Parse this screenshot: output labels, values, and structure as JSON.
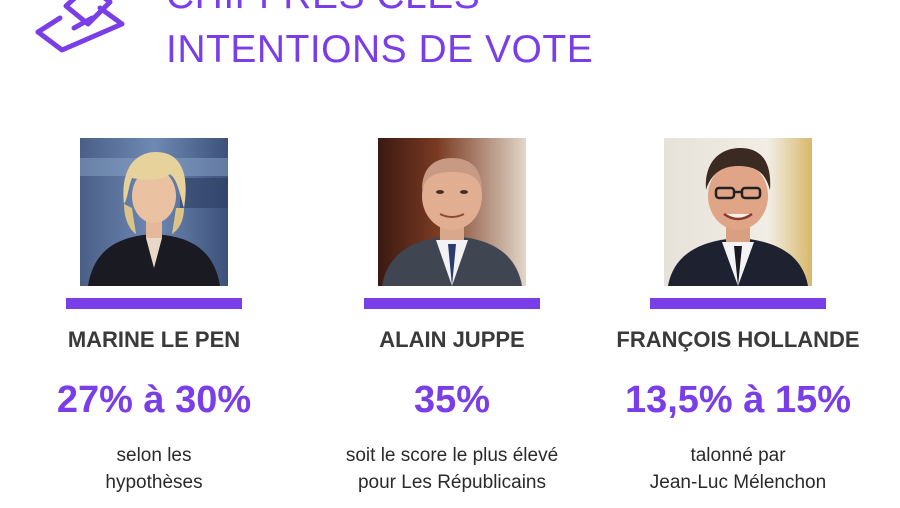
{
  "header": {
    "title_line1": "CHIFFRES CLÉS",
    "title_line2": "INTENTIONS DE VOTE",
    "icon": "ballot-box-icon"
  },
  "colors": {
    "accent": "#7a3ee8",
    "name_text": "#3a3a3a",
    "body_text": "#2a2a2a"
  },
  "candidates": [
    {
      "name": "MARINE LE PEN",
      "score": "27% à 30%",
      "desc_line1": "selon les",
      "desc_line2": "hypothèses"
    },
    {
      "name": "ALAIN JUPPE",
      "score": "35%",
      "desc_line1": "soit le score le plus élevé",
      "desc_line2": "pour Les Républicains"
    },
    {
      "name": "FRANÇOIS HOLLANDE",
      "score": "13,5% à 15%",
      "desc_line1": "talonné par",
      "desc_line2": "Jean-Luc Mélenchon"
    }
  ]
}
